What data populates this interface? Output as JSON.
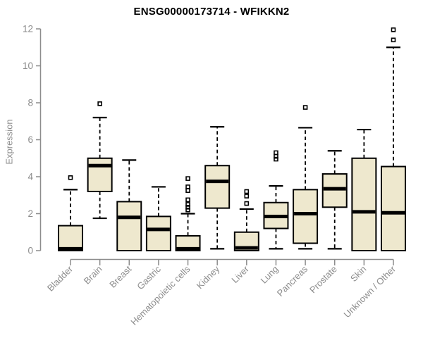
{
  "chart_data": {
    "type": "boxplot",
    "title": "ENSG00000173714 - WFIKKN2",
    "ylabel": "Expression",
    "xlabel": "",
    "ylim": [
      0,
      12
    ],
    "yticks": [
      0,
      2,
      4,
      6,
      8,
      10,
      12
    ],
    "grid": false,
    "legend": "none",
    "categories": [
      "Bladder",
      "Brain",
      "Breast",
      "Gastric",
      "Hematopoietic cells",
      "Kidney",
      "Liver",
      "Lung",
      "Pancreas",
      "Prostate",
      "Skin",
      "Unknown / Other"
    ],
    "series": [
      {
        "name": "Bladder",
        "whisker_low": 0,
        "q1": 0,
        "median": 0.1,
        "q3": 1.35,
        "whisker_high": 3.3,
        "outliers": [
          3.95
        ]
      },
      {
        "name": "Brain",
        "whisker_low": 1.75,
        "q1": 3.2,
        "median": 4.6,
        "q3": 5.0,
        "whisker_high": 7.2,
        "outliers": [
          7.95
        ]
      },
      {
        "name": "Breast",
        "whisker_low": 0,
        "q1": 0,
        "median": 1.8,
        "q3": 2.65,
        "whisker_high": 4.9,
        "outliers": []
      },
      {
        "name": "Gastric",
        "whisker_low": 0,
        "q1": 0,
        "median": 1.15,
        "q3": 1.85,
        "whisker_high": 3.45,
        "outliers": []
      },
      {
        "name": "Hematopoietic cells",
        "whisker_low": 0,
        "q1": 0,
        "median": 0.1,
        "q3": 0.8,
        "whisker_high": 2.0,
        "outliers": [
          2.2,
          2.35,
          2.5,
          2.75,
          3.25,
          3.45,
          3.9
        ]
      },
      {
        "name": "Kidney",
        "whisker_low": 0.1,
        "q1": 2.3,
        "median": 3.75,
        "q3": 4.6,
        "whisker_high": 6.7,
        "outliers": []
      },
      {
        "name": "Liver",
        "whisker_low": 0,
        "q1": 0,
        "median": 0.15,
        "q3": 1.0,
        "whisker_high": 2.25,
        "outliers": [
          2.55,
          2.95,
          3.2
        ]
      },
      {
        "name": "Lung",
        "whisker_low": 0.1,
        "q1": 1.2,
        "median": 1.85,
        "q3": 2.6,
        "whisker_high": 3.5,
        "outliers": [
          4.95,
          5.1,
          5.3
        ]
      },
      {
        "name": "Pancreas",
        "whisker_low": 0.1,
        "q1": 0.4,
        "median": 2.0,
        "q3": 3.3,
        "whisker_high": 6.65,
        "outliers": [
          7.75
        ]
      },
      {
        "name": "Prostate",
        "whisker_low": 0.1,
        "q1": 2.35,
        "median": 3.35,
        "q3": 4.15,
        "whisker_high": 5.4,
        "outliers": []
      },
      {
        "name": "Skin",
        "whisker_low": 0,
        "q1": 0,
        "median": 2.1,
        "q3": 5.0,
        "whisker_high": 6.55,
        "outliers": []
      },
      {
        "name": "Unknown / Other",
        "whisker_low": 0,
        "q1": 0,
        "median": 2.05,
        "q3": 4.55,
        "whisker_high": 11.0,
        "outliers": [
          11.4,
          11.95
        ]
      }
    ],
    "colors": {
      "box_fill": "#EEE8CE",
      "box_stroke": "#000000",
      "median": "#000000",
      "whisker": "#000000",
      "axis": "#8c8c8c",
      "tick_text": "#8c8c8c",
      "title_text": "#000000",
      "background": "#ffffff"
    }
  }
}
